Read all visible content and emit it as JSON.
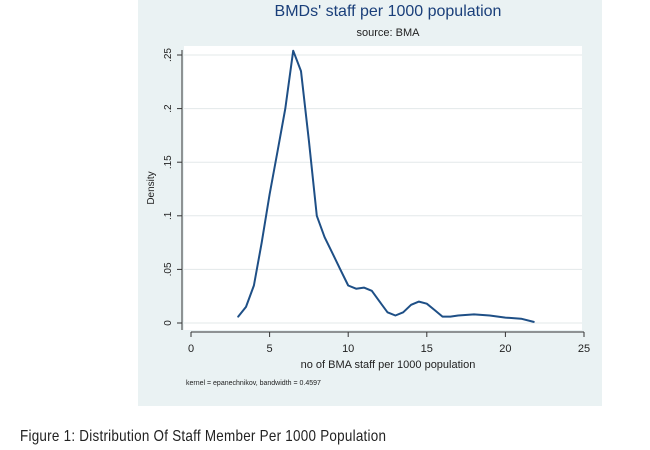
{
  "caption": "Figure 1: Distribution Of Staff Member Per 1000 Population",
  "colors": {
    "panel": "#eaf2f3",
    "plot": "#ffffff",
    "line": "#1e4f86",
    "title": "#1a3f7a",
    "grid": "#e3e8ea"
  },
  "chart_data": {
    "type": "line",
    "title": "BMDs' staff per 1000 population",
    "subtitle": "source: BMA",
    "xlabel": "no of BMA staff per 1000 population",
    "ylabel": "Density",
    "note": "kernel = epanechnikov, bandwidth = 0.4597",
    "xlim": [
      0,
      25
    ],
    "ylim": [
      0,
      0.26
    ],
    "xticks": [
      0,
      5,
      10,
      15,
      20,
      25
    ],
    "xtick_labels": [
      "0",
      "5",
      "10",
      "15",
      "20",
      "25"
    ],
    "yticks": [
      0,
      0.05,
      0.1,
      0.15,
      0.2,
      0.25
    ],
    "ytick_labels": [
      "0",
      ".05",
      ".1",
      ".15",
      ".2",
      ".25"
    ],
    "grid": true,
    "series": [
      {
        "x": [
          3,
          3.5,
          4,
          4.5,
          5,
          5.5,
          6,
          6.5,
          7,
          7.5,
          8,
          8.5,
          9,
          9.5,
          10,
          10.5,
          11,
          11.5,
          12,
          12.5,
          13,
          13.5,
          14,
          14.5,
          15,
          15.5,
          16,
          16.5,
          17,
          18,
          19,
          20,
          21,
          21.8
        ],
        "y": [
          0.006,
          0.015,
          0.035,
          0.075,
          0.12,
          0.16,
          0.2,
          0.254,
          0.235,
          0.17,
          0.1,
          0.08,
          0.065,
          0.05,
          0.035,
          0.032,
          0.033,
          0.03,
          0.02,
          0.01,
          0.007,
          0.01,
          0.017,
          0.02,
          0.018,
          0.012,
          0.006,
          0.006,
          0.007,
          0.008,
          0.007,
          0.005,
          0.004,
          0.001
        ]
      }
    ]
  }
}
